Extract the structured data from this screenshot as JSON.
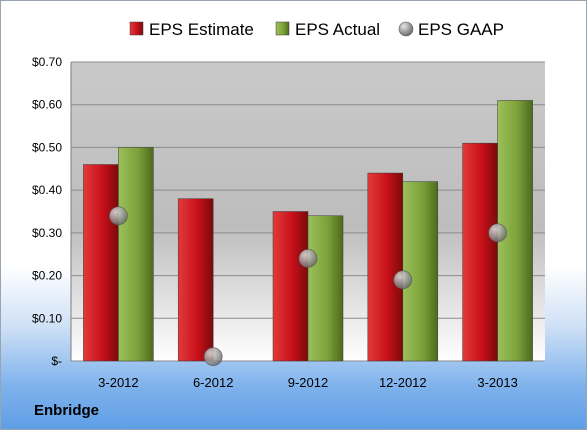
{
  "chart_data": {
    "type": "bar",
    "categories": [
      "3-2012",
      "6-2012",
      "9-2012",
      "12-2012",
      "3-2013"
    ],
    "series": [
      {
        "name": "EPS Estimate",
        "kind": "bar",
        "color": "#c8101a",
        "values": [
          0.46,
          0.38,
          0.35,
          0.44,
          0.51
        ]
      },
      {
        "name": "EPS Actual",
        "kind": "bar",
        "color": "#7ea23a",
        "values": [
          0.5,
          null,
          0.34,
          0.42,
          0.61
        ]
      },
      {
        "name": "EPS GAAP",
        "kind": "marker",
        "color": "#8a8a8a",
        "values": [
          0.34,
          0.01,
          0.24,
          0.19,
          0.3
        ]
      }
    ],
    "yticks": [
      {
        "value": 0.0,
        "label": "$-"
      },
      {
        "value": 0.1,
        "label": "$0.10"
      },
      {
        "value": 0.2,
        "label": "$0.20"
      },
      {
        "value": 0.3,
        "label": "$0.30"
      },
      {
        "value": 0.4,
        "label": "$0.40"
      },
      {
        "value": 0.5,
        "label": "$0.50"
      },
      {
        "value": 0.6,
        "label": "$0.60"
      },
      {
        "value": 0.7,
        "label": "$0.70"
      }
    ],
    "ylim": [
      0,
      0.7
    ],
    "grid": true,
    "legend_position": "top"
  },
  "company": "Enbridge"
}
